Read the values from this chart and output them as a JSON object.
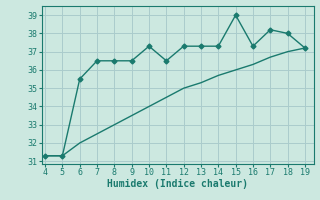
{
  "xlabel": "Humidex (Indice chaleur)",
  "line1_x": [
    4,
    5,
    6,
    7,
    8,
    9,
    10,
    11,
    12,
    13,
    14,
    15,
    16,
    17,
    18,
    19
  ],
  "line1_y": [
    31.3,
    31.3,
    35.5,
    36.5,
    36.5,
    36.5,
    37.3,
    36.5,
    37.3,
    37.3,
    37.3,
    39.0,
    37.3,
    38.2,
    38.0,
    37.2
  ],
  "line2_x": [
    4,
    5,
    6,
    7,
    8,
    9,
    10,
    11,
    12,
    13,
    14,
    15,
    16,
    17,
    18,
    19
  ],
  "line2_y": [
    31.3,
    31.3,
    32.0,
    32.5,
    33.0,
    33.5,
    34.0,
    34.5,
    35.0,
    35.3,
    35.7,
    36.0,
    36.3,
    36.7,
    37.0,
    37.2
  ],
  "line_color": "#1a7a6e",
  "bg_color": "#cce8e0",
  "grid_color": "#aacccc",
  "xlim": [
    3.8,
    19.5
  ],
  "ylim": [
    30.85,
    39.5
  ],
  "xticks": [
    4,
    5,
    6,
    7,
    8,
    9,
    10,
    11,
    12,
    13,
    14,
    15,
    16,
    17,
    18,
    19
  ],
  "yticks": [
    31,
    32,
    33,
    34,
    35,
    36,
    37,
    38,
    39
  ],
  "marker": "D",
  "markersize": 2.5,
  "linewidth": 1.0,
  "tick_fontsize": 6.0,
  "xlabel_fontsize": 7.0
}
